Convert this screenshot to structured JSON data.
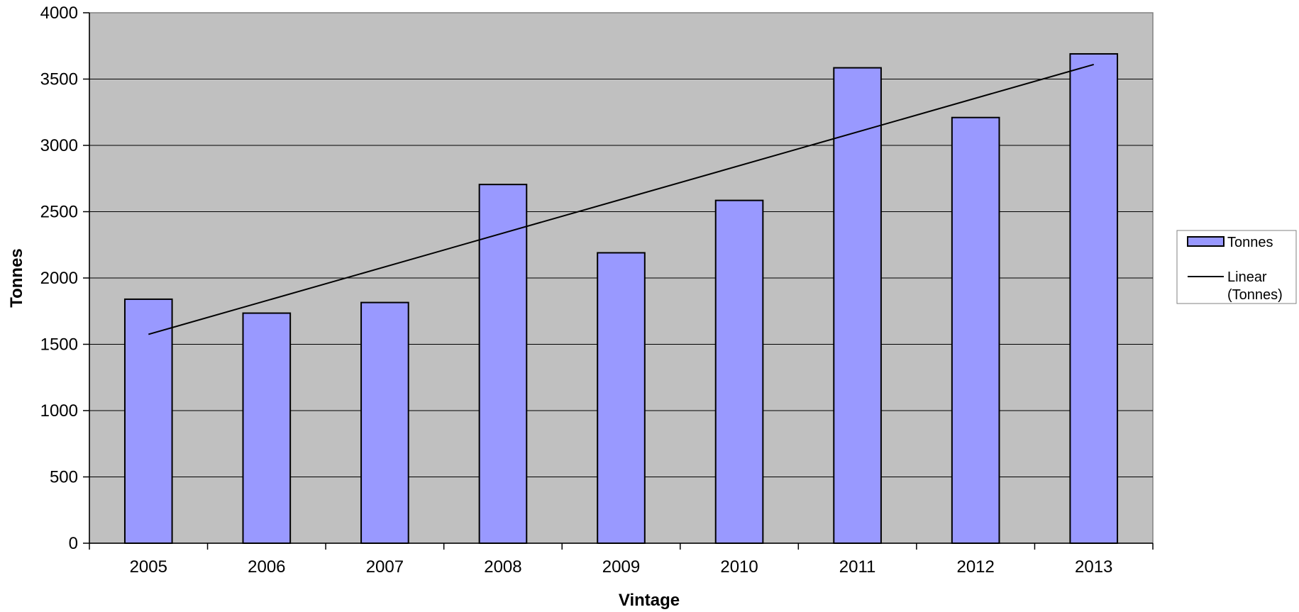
{
  "chart_data": {
    "type": "bar",
    "title": "",
    "xlabel": "Vintage",
    "ylabel": "Tonnes",
    "categories": [
      "2005",
      "2006",
      "2007",
      "2008",
      "2009",
      "2010",
      "2011",
      "2012",
      "2013"
    ],
    "series": [
      {
        "name": "Tonnes",
        "values": [
          1840,
          1735,
          1815,
          2705,
          2190,
          2585,
          3585,
          3210,
          3690
        ]
      }
    ],
    "trendline": {
      "name": "Linear (Tonnes)",
      "start": 1575,
      "end": 3610
    },
    "ylim": [
      0,
      4000
    ],
    "yticks": [
      0,
      500,
      1000,
      1500,
      2000,
      2500,
      3000,
      3500,
      4000
    ],
    "grid": true,
    "legend_position": "right",
    "legend": {
      "bar_label": "Tonnes",
      "line_label_line1": "Linear",
      "line_label_line2": "(Tonnes)"
    },
    "colors": {
      "plot_bg": "#C0C0C0",
      "bar_fill": "#9999FF",
      "bar_stroke": "#000000",
      "grid": "#000000",
      "trend": "#000000"
    }
  }
}
